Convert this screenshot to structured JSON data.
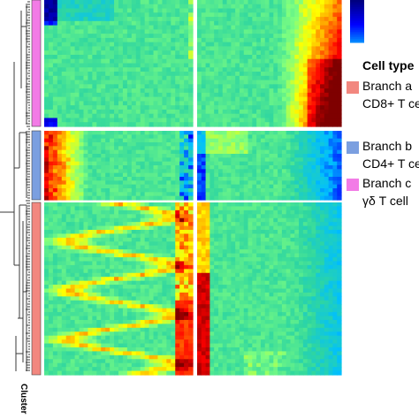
{
  "legend": {
    "title": "Cell type",
    "items": [
      {
        "label_line1": "Branch a",
        "label_line2": "CD8+ T ce",
        "color": "#f2877f"
      },
      {
        "label_line1": "Branch b",
        "label_line2": "CD4+ T ce",
        "color": "#7b9fe0"
      },
      {
        "label_line1": "Branch c",
        "label_line2": "γδ T cell",
        "color": "#f27be6"
      }
    ]
  },
  "cluster_label": "Cluster",
  "chart_data": {
    "type": "heatmap",
    "colorscale": [
      "#00007f",
      "#0000ff",
      "#00bfff",
      "#2fd6a0",
      "#7fff7f",
      "#ffff00",
      "#ff7f00",
      "#ff0000",
      "#7f0000"
    ],
    "panels": [
      {
        "cluster": "Branch c",
        "color": "#f27be6",
        "rows": 30
      },
      {
        "cluster": "Branch b",
        "color": "#7b9fe0",
        "rows": 18
      },
      {
        "cluster": "Branch a",
        "color": "#f2877f",
        "rows": 44
      }
    ],
    "columns": [
      "left",
      "right"
    ]
  }
}
